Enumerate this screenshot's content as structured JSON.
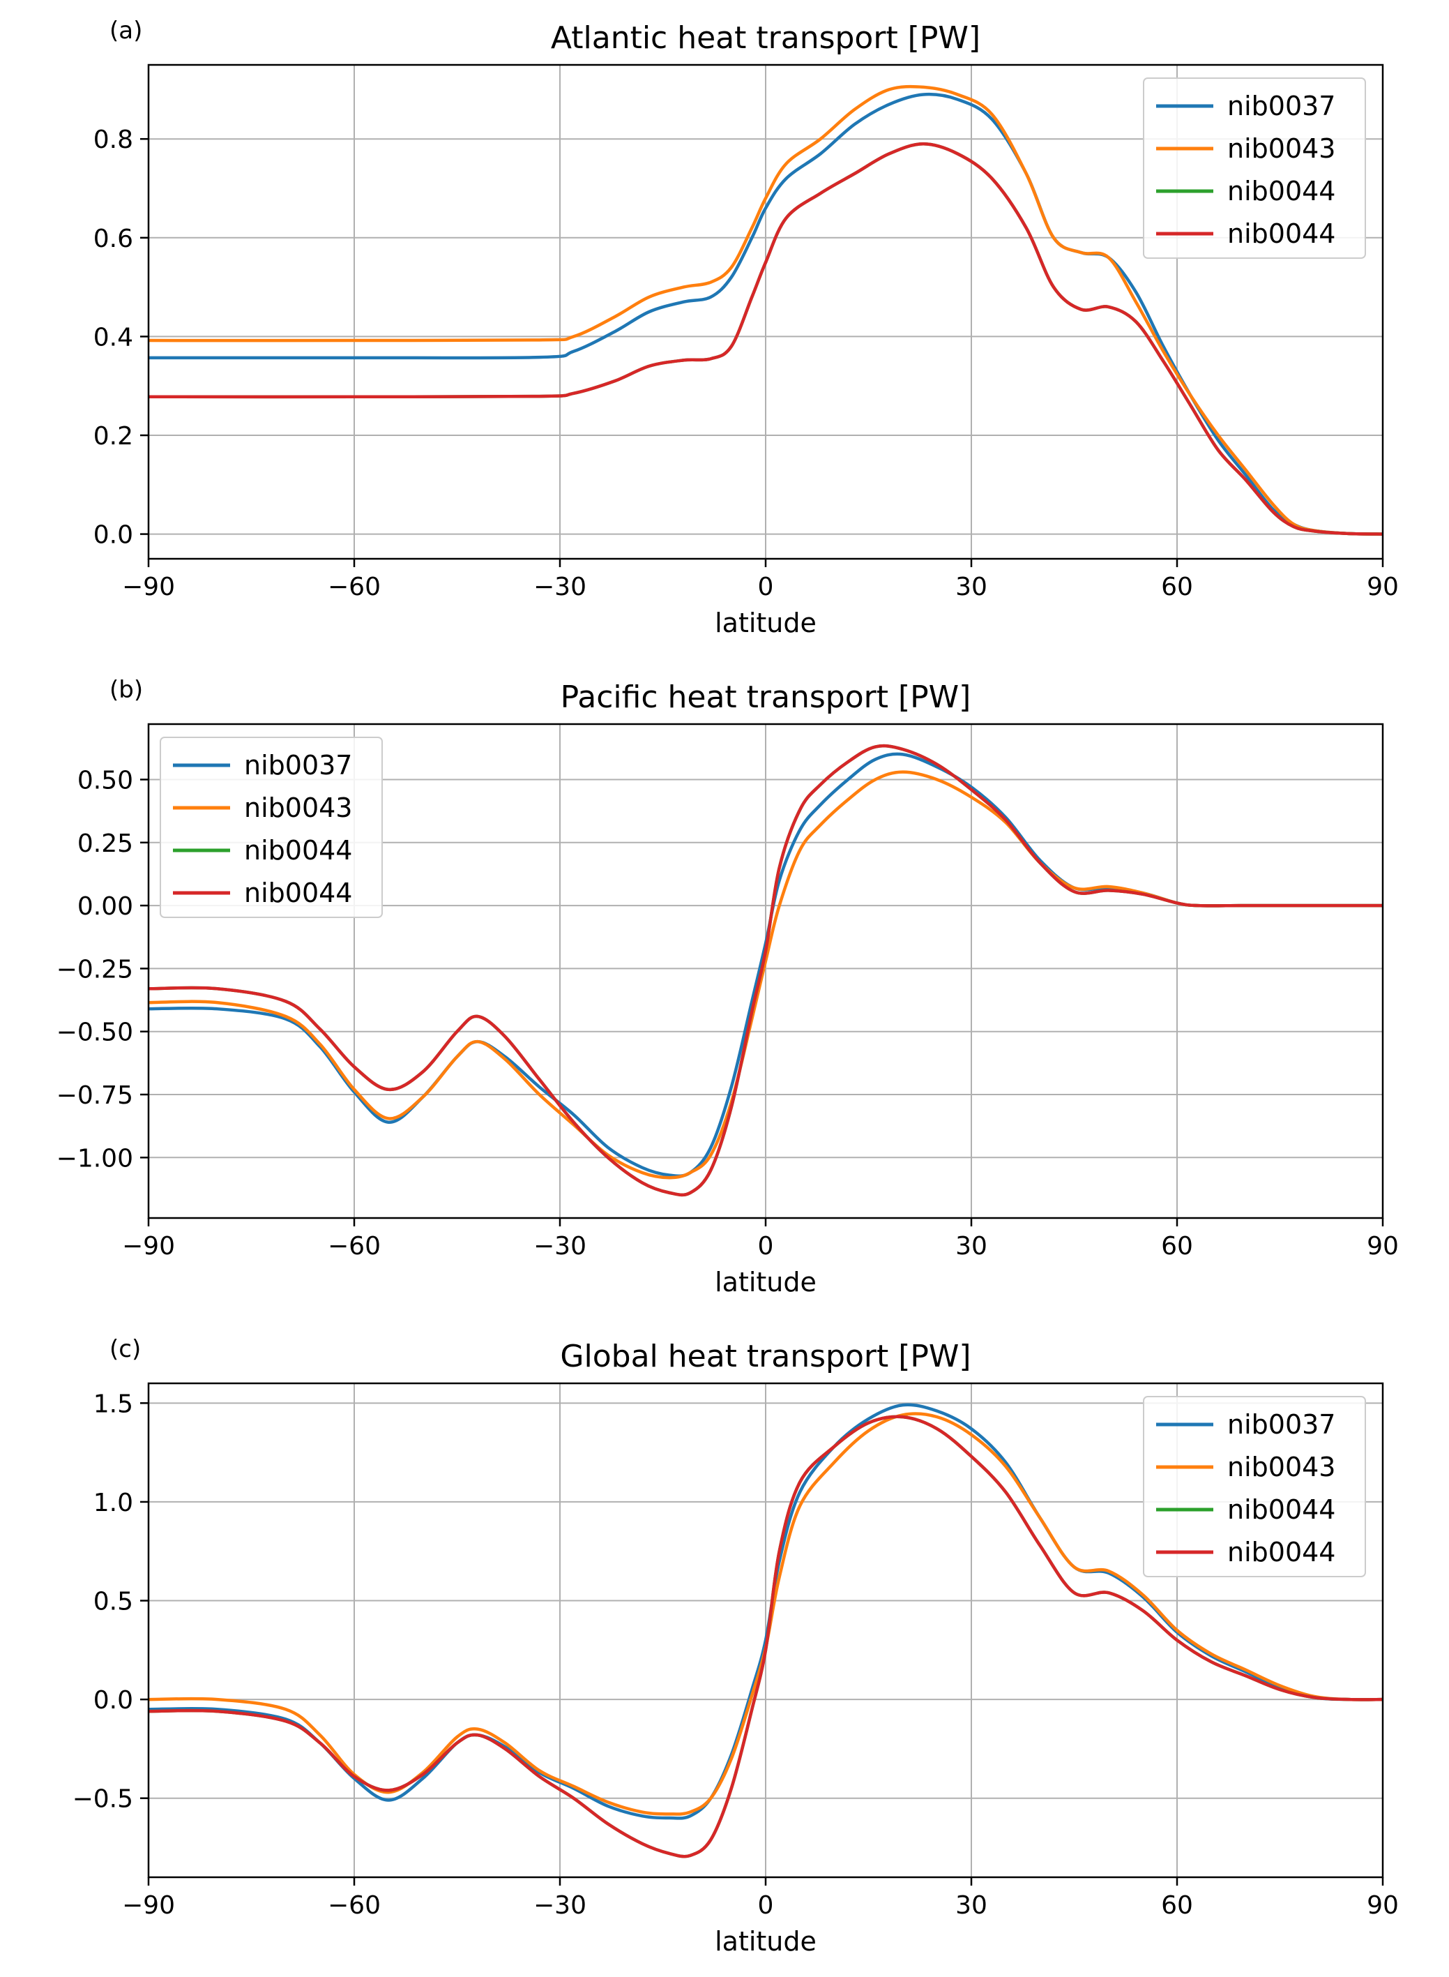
{
  "colors": {
    "nib0037": "#1f77b4",
    "nib0043": "#ff7f0e",
    "nib0044_a": "#2ca02c",
    "nib0044_b": "#d62728"
  },
  "chart_data": [
    {
      "type": "line",
      "panel_label": "(a)",
      "title": "Atlantic heat transport [PW]",
      "xlabel": "latitude",
      "ylabel": "",
      "xlim": [
        -90,
        90
      ],
      "ylim": [
        -0.05,
        0.95
      ],
      "xticks": [
        -90,
        -60,
        -30,
        0,
        30,
        60,
        90
      ],
      "xtick_labels": [
        "−90",
        "−60",
        "−30",
        "0",
        "30",
        "60",
        "90"
      ],
      "yticks": [
        0.0,
        0.2,
        0.4,
        0.6,
        0.8
      ],
      "ytick_labels": [
        "0.0",
        "0.2",
        "0.4",
        "0.6",
        "0.8"
      ],
      "grid": true,
      "legend_position": "upper-right",
      "series": [
        {
          "name": "nib0037",
          "color": "#1f77b4",
          "x": [
            -90,
            -60,
            -33,
            -28,
            -22,
            -17,
            -12,
            -8,
            -5,
            -2,
            0,
            3,
            8,
            13,
            18,
            23,
            28,
            33,
            38,
            42,
            46,
            50,
            54,
            58,
            62,
            66,
            70,
            74,
            77,
            80,
            85,
            90
          ],
          "y": [
            0.357,
            0.357,
            0.358,
            0.37,
            0.41,
            0.45,
            0.47,
            0.48,
            0.52,
            0.6,
            0.66,
            0.72,
            0.77,
            0.83,
            0.87,
            0.89,
            0.88,
            0.84,
            0.73,
            0.6,
            0.57,
            0.56,
            0.49,
            0.38,
            0.28,
            0.19,
            0.12,
            0.05,
            0.02,
            0.007,
            0.001,
            0.0
          ]
        },
        {
          "name": "nib0043",
          "color": "#ff7f0e",
          "x": [
            -90,
            -60,
            -33,
            -28,
            -22,
            -17,
            -12,
            -8,
            -5,
            -2,
            0,
            3,
            8,
            13,
            18,
            23,
            28,
            33,
            38,
            42,
            46,
            50,
            54,
            58,
            62,
            66,
            70,
            74,
            77,
            80,
            85,
            90
          ],
          "y": [
            0.392,
            0.392,
            0.393,
            0.4,
            0.44,
            0.48,
            0.5,
            0.51,
            0.54,
            0.62,
            0.68,
            0.75,
            0.8,
            0.86,
            0.9,
            0.905,
            0.89,
            0.85,
            0.73,
            0.6,
            0.57,
            0.56,
            0.47,
            0.37,
            0.28,
            0.2,
            0.13,
            0.06,
            0.02,
            0.007,
            0.001,
            0.0
          ]
        },
        {
          "name": "nib0044",
          "color": "#2ca02c",
          "x": [
            -90,
            -60,
            -33,
            -28,
            -22,
            -17,
            -12,
            -8,
            -5,
            -2,
            0,
            3,
            8,
            13,
            18,
            23,
            28,
            33,
            38,
            42,
            46,
            50,
            54,
            58,
            62,
            66,
            70,
            74,
            77,
            80,
            85,
            90
          ],
          "y": [
            0.278,
            0.278,
            0.279,
            0.285,
            0.31,
            0.34,
            0.352,
            0.355,
            0.38,
            0.48,
            0.55,
            0.64,
            0.69,
            0.73,
            0.77,
            0.79,
            0.77,
            0.72,
            0.62,
            0.5,
            0.455,
            0.46,
            0.43,
            0.35,
            0.26,
            0.17,
            0.11,
            0.045,
            0.015,
            0.006,
            0.001,
            0.0
          ]
        },
        {
          "name": "nib0044",
          "color": "#d62728",
          "x": [
            -90,
            -60,
            -33,
            -28,
            -22,
            -17,
            -12,
            -8,
            -5,
            -2,
            0,
            3,
            8,
            13,
            18,
            23,
            28,
            33,
            38,
            42,
            46,
            50,
            54,
            58,
            62,
            66,
            70,
            74,
            77,
            80,
            85,
            90
          ],
          "y": [
            0.278,
            0.278,
            0.279,
            0.285,
            0.31,
            0.34,
            0.352,
            0.355,
            0.38,
            0.48,
            0.55,
            0.64,
            0.69,
            0.73,
            0.77,
            0.79,
            0.77,
            0.72,
            0.62,
            0.5,
            0.455,
            0.46,
            0.43,
            0.35,
            0.26,
            0.17,
            0.11,
            0.045,
            0.015,
            0.006,
            0.001,
            0.0
          ]
        }
      ]
    },
    {
      "type": "line",
      "panel_label": "(b)",
      "title": "Pacific heat transport [PW]",
      "xlabel": "latitude",
      "ylabel": "",
      "xlim": [
        -90,
        90
      ],
      "ylim": [
        -1.24,
        0.72
      ],
      "xticks": [
        -90,
        -60,
        -30,
        0,
        30,
        60,
        90
      ],
      "xtick_labels": [
        "−90",
        "−60",
        "−30",
        "0",
        "30",
        "60",
        "90"
      ],
      "yticks": [
        -1.0,
        -0.75,
        -0.5,
        -0.25,
        0.0,
        0.25,
        0.5
      ],
      "ytick_labels": [
        "−1.00",
        "−0.75",
        "−0.50",
        "−0.25",
        "0.00",
        "0.25",
        "0.50"
      ],
      "grid": true,
      "legend_position": "upper-left",
      "series": [
        {
          "name": "nib0037",
          "color": "#1f77b4",
          "x": [
            -90,
            -80,
            -70,
            -65,
            -60,
            -55,
            -50,
            -45,
            -42,
            -38,
            -33,
            -28,
            -23,
            -18,
            -14,
            -11,
            -8,
            -5,
            -2,
            0,
            2,
            5,
            8,
            12,
            16,
            20,
            25,
            30,
            35,
            40,
            45,
            50,
            55,
            60,
            63,
            70,
            80,
            90
          ],
          "y": [
            -0.41,
            -0.41,
            -0.45,
            -0.56,
            -0.74,
            -0.86,
            -0.76,
            -0.6,
            -0.54,
            -0.6,
            -0.72,
            -0.83,
            -0.96,
            -1.04,
            -1.07,
            -1.06,
            -0.96,
            -0.72,
            -0.38,
            -0.15,
            0.1,
            0.3,
            0.4,
            0.5,
            0.58,
            0.6,
            0.55,
            0.47,
            0.35,
            0.18,
            0.07,
            0.07,
            0.05,
            0.01,
            0.0,
            0.0,
            0.0,
            0.0
          ]
        },
        {
          "name": "nib0043",
          "color": "#ff7f0e",
          "x": [
            -90,
            -80,
            -70,
            -65,
            -60,
            -55,
            -50,
            -45,
            -42,
            -38,
            -33,
            -28,
            -23,
            -18,
            -14,
            -11,
            -8,
            -5,
            -2,
            0,
            2,
            5,
            8,
            12,
            16,
            20,
            25,
            30,
            35,
            40,
            45,
            50,
            55,
            60,
            63,
            70,
            80,
            90
          ],
          "y": [
            -0.385,
            -0.385,
            -0.44,
            -0.55,
            -0.73,
            -0.845,
            -0.76,
            -0.6,
            -0.54,
            -0.61,
            -0.75,
            -0.87,
            -0.99,
            -1.06,
            -1.08,
            -1.06,
            -0.99,
            -0.78,
            -0.45,
            -0.22,
            0.0,
            0.22,
            0.32,
            0.42,
            0.5,
            0.53,
            0.5,
            0.43,
            0.33,
            0.17,
            0.07,
            0.075,
            0.05,
            0.01,
            0.0,
            0.0,
            0.0,
            0.0
          ]
        },
        {
          "name": "nib0044",
          "color": "#2ca02c",
          "x": [
            -90,
            -80,
            -70,
            -65,
            -60,
            -55,
            -50,
            -45,
            -42,
            -38,
            -33,
            -28,
            -23,
            -18,
            -14,
            -11,
            -8,
            -5,
            -2,
            0,
            2,
            5,
            8,
            12,
            16,
            20,
            25,
            30,
            35,
            40,
            45,
            50,
            55,
            60,
            63,
            70,
            80,
            90
          ],
          "y": [
            -0.33,
            -0.33,
            -0.38,
            -0.49,
            -0.64,
            -0.73,
            -0.66,
            -0.5,
            -0.44,
            -0.52,
            -0.69,
            -0.86,
            -1.0,
            -1.1,
            -1.14,
            -1.14,
            -1.05,
            -0.8,
            -0.42,
            -0.18,
            0.15,
            0.38,
            0.48,
            0.57,
            0.63,
            0.62,
            0.56,
            0.46,
            0.34,
            0.17,
            0.055,
            0.06,
            0.045,
            0.01,
            0.0,
            0.0,
            0.0,
            0.0
          ]
        },
        {
          "name": "nib0044",
          "color": "#d62728",
          "x": [
            -90,
            -80,
            -70,
            -65,
            -60,
            -55,
            -50,
            -45,
            -42,
            -38,
            -33,
            -28,
            -23,
            -18,
            -14,
            -11,
            -8,
            -5,
            -2,
            0,
            2,
            5,
            8,
            12,
            16,
            20,
            25,
            30,
            35,
            40,
            45,
            50,
            55,
            60,
            63,
            70,
            80,
            90
          ],
          "y": [
            -0.33,
            -0.33,
            -0.38,
            -0.49,
            -0.64,
            -0.73,
            -0.66,
            -0.5,
            -0.44,
            -0.52,
            -0.69,
            -0.86,
            -1.0,
            -1.1,
            -1.14,
            -1.14,
            -1.05,
            -0.8,
            -0.42,
            -0.18,
            0.15,
            0.38,
            0.48,
            0.57,
            0.63,
            0.62,
            0.56,
            0.46,
            0.34,
            0.17,
            0.055,
            0.06,
            0.045,
            0.01,
            0.0,
            0.0,
            0.0,
            0.0
          ]
        }
      ]
    },
    {
      "type": "line",
      "panel_label": "(c)",
      "title": "Global heat transport [PW]",
      "xlabel": "latitude",
      "ylabel": "",
      "xlim": [
        -90,
        90
      ],
      "ylim": [
        -0.9,
        1.6
      ],
      "xticks": [
        -90,
        -60,
        -30,
        0,
        30,
        60,
        90
      ],
      "xtick_labels": [
        "−90",
        "−60",
        "−30",
        "0",
        "30",
        "60",
        "90"
      ],
      "yticks": [
        -0.5,
        0.0,
        0.5,
        1.0,
        1.5
      ],
      "ytick_labels": [
        "−0.5",
        "0.0",
        "0.5",
        "1.0",
        "1.5"
      ],
      "grid": true,
      "legend_position": "upper-right",
      "series": [
        {
          "name": "nib0037",
          "color": "#1f77b4",
          "x": [
            -90,
            -80,
            -70,
            -65,
            -60,
            -55,
            -50,
            -45,
            -42,
            -38,
            -33,
            -28,
            -23,
            -18,
            -14,
            -11,
            -8,
            -5,
            -2,
            0,
            2,
            5,
            10,
            15,
            20,
            25,
            30,
            35,
            40,
            45,
            50,
            55,
            60,
            65,
            70,
            75,
            80,
            85,
            90
          ],
          "y": [
            -0.05,
            -0.05,
            -0.1,
            -0.22,
            -0.4,
            -0.51,
            -0.4,
            -0.22,
            -0.18,
            -0.24,
            -0.37,
            -0.45,
            -0.54,
            -0.59,
            -0.6,
            -0.59,
            -0.5,
            -0.28,
            0.05,
            0.3,
            0.7,
            1.05,
            1.28,
            1.42,
            1.49,
            1.46,
            1.37,
            1.2,
            0.92,
            0.67,
            0.64,
            0.52,
            0.34,
            0.22,
            0.14,
            0.06,
            0.01,
            0.0,
            0.0
          ]
        },
        {
          "name": "nib0043",
          "color": "#ff7f0e",
          "x": [
            -90,
            -80,
            -70,
            -65,
            -60,
            -55,
            -50,
            -45,
            -42,
            -38,
            -33,
            -28,
            -23,
            -18,
            -14,
            -11,
            -8,
            -5,
            -2,
            0,
            2,
            5,
            10,
            15,
            20,
            25,
            30,
            35,
            40,
            45,
            50,
            55,
            60,
            65,
            70,
            75,
            80,
            85,
            90
          ],
          "y": [
            0.0,
            0.0,
            -0.05,
            -0.18,
            -0.38,
            -0.47,
            -0.37,
            -0.19,
            -0.15,
            -0.22,
            -0.36,
            -0.44,
            -0.52,
            -0.57,
            -0.58,
            -0.57,
            -0.5,
            -0.3,
            0.02,
            0.26,
            0.62,
            0.98,
            1.2,
            1.36,
            1.44,
            1.43,
            1.34,
            1.18,
            0.92,
            0.67,
            0.65,
            0.53,
            0.35,
            0.23,
            0.15,
            0.07,
            0.015,
            0.0,
            0.0
          ]
        },
        {
          "name": "nib0044",
          "color": "#2ca02c",
          "x": [
            -90,
            -80,
            -70,
            -65,
            -60,
            -55,
            -50,
            -45,
            -42,
            -38,
            -33,
            -28,
            -23,
            -18,
            -14,
            -11,
            -8,
            -5,
            -2,
            0,
            2,
            5,
            10,
            15,
            20,
            25,
            30,
            35,
            40,
            45,
            50,
            55,
            60,
            65,
            70,
            75,
            80,
            85,
            90
          ],
          "y": [
            -0.06,
            -0.06,
            -0.11,
            -0.22,
            -0.39,
            -0.46,
            -0.38,
            -0.22,
            -0.18,
            -0.25,
            -0.39,
            -0.5,
            -0.63,
            -0.73,
            -0.78,
            -0.79,
            -0.71,
            -0.45,
            -0.05,
            0.25,
            0.75,
            1.1,
            1.28,
            1.4,
            1.43,
            1.37,
            1.23,
            1.05,
            0.78,
            0.54,
            0.54,
            0.45,
            0.3,
            0.19,
            0.12,
            0.05,
            0.01,
            0.0,
            0.0
          ]
        },
        {
          "name": "nib0044",
          "color": "#d62728",
          "x": [
            -90,
            -80,
            -70,
            -65,
            -60,
            -55,
            -50,
            -45,
            -42,
            -38,
            -33,
            -28,
            -23,
            -18,
            -14,
            -11,
            -8,
            -5,
            -2,
            0,
            2,
            5,
            10,
            15,
            20,
            25,
            30,
            35,
            40,
            45,
            50,
            55,
            60,
            65,
            70,
            75,
            80,
            85,
            90
          ],
          "y": [
            -0.06,
            -0.06,
            -0.11,
            -0.22,
            -0.39,
            -0.46,
            -0.38,
            -0.22,
            -0.18,
            -0.25,
            -0.39,
            -0.5,
            -0.63,
            -0.73,
            -0.78,
            -0.79,
            -0.71,
            -0.45,
            -0.05,
            0.25,
            0.75,
            1.1,
            1.28,
            1.4,
            1.43,
            1.37,
            1.23,
            1.05,
            0.78,
            0.54,
            0.54,
            0.45,
            0.3,
            0.19,
            0.12,
            0.05,
            0.01,
            0.0,
            0.0
          ]
        }
      ]
    }
  ]
}
